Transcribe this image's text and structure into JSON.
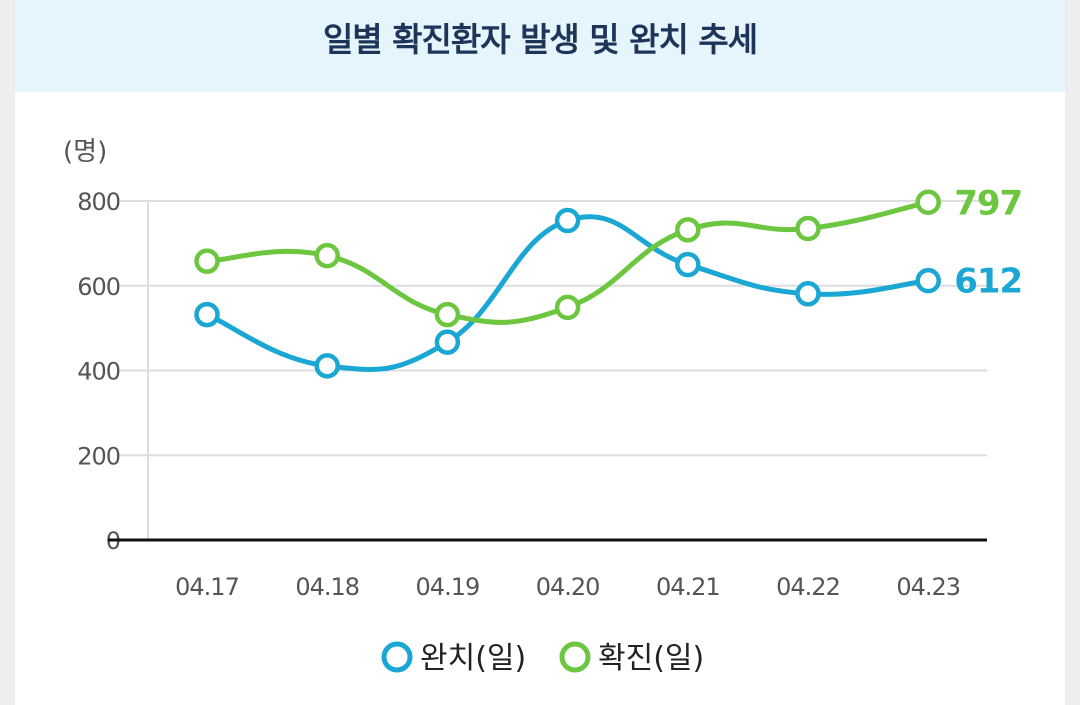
{
  "chart_data": {
    "type": "line",
    "title": "일별 확진환자 발생 및 완치 추세",
    "unit_label": "(명)",
    "categories": [
      "04.17",
      "04.18",
      "04.19",
      "04.20",
      "04.21",
      "04.22",
      "04.23"
    ],
    "yticks": [
      0,
      200,
      400,
      600,
      800
    ],
    "ylim": [
      0,
      800
    ],
    "grid": true,
    "legend_position": "bottom",
    "series": [
      {
        "name": "완치(일)",
        "color": "#1aa7d3",
        "values": [
          532,
          411,
          467,
          754,
          650,
          581,
          612
        ],
        "end_label": "612"
      },
      {
        "name": "확진(일)",
        "color": "#6cc63f",
        "values": [
          658,
          671,
          532,
          549,
          732,
          735,
          797
        ],
        "end_label": "797"
      }
    ]
  }
}
